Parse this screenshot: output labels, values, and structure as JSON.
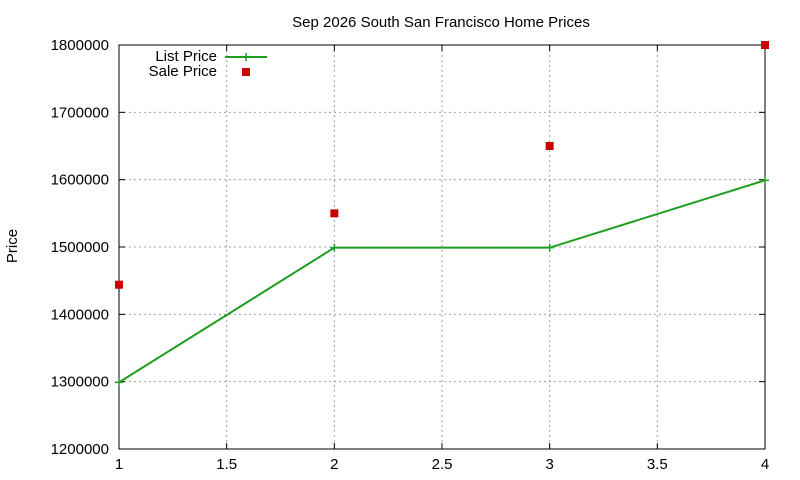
{
  "chart_data": {
    "type": "line",
    "title": "Sep 2026 South San Francisco Home Prices",
    "xlabel": "",
    "ylabel": "Price",
    "xlim": [
      1,
      4
    ],
    "ylim": [
      1200000,
      1800000
    ],
    "x_ticks": [
      1,
      1.5,
      2,
      2.5,
      3,
      3.5,
      4
    ],
    "x_tick_labels": [
      "1",
      "1.5",
      "2",
      "2.5",
      "3",
      "3.5",
      "4"
    ],
    "y_ticks": [
      1200000,
      1300000,
      1400000,
      1500000,
      1600000,
      1700000,
      1800000
    ],
    "y_tick_labels": [
      "1200000",
      "1300000",
      "1400000",
      "1500000",
      "1600000",
      "1700000",
      "1800000"
    ],
    "grid": true,
    "legend_position": "top-left",
    "series": [
      {
        "name": "List Price",
        "style": "linespoints",
        "color": "#1f9e1f",
        "marker": "plus",
        "x": [
          1,
          2,
          3,
          4
        ],
        "y": [
          1299000,
          1499000,
          1499000,
          1599000
        ]
      },
      {
        "name": "Sale Price",
        "style": "points",
        "color": "#cc0000",
        "marker": "square",
        "x": [
          1,
          2,
          3,
          4
        ],
        "y": [
          1444000,
          1550000,
          1650000,
          1800000
        ]
      }
    ]
  }
}
